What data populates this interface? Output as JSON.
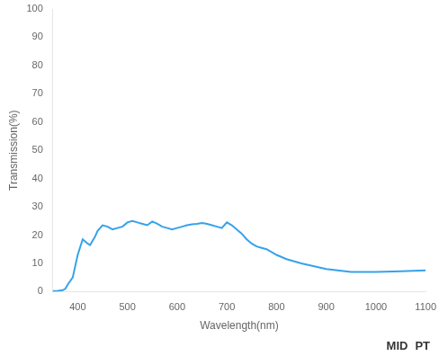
{
  "chart_data": {
    "type": "line",
    "x": [
      350,
      360,
      370,
      375,
      380,
      390,
      400,
      410,
      420,
      425,
      430,
      435,
      440,
      450,
      460,
      470,
      480,
      490,
      500,
      510,
      520,
      530,
      540,
      550,
      560,
      570,
      580,
      590,
      600,
      610,
      620,
      630,
      640,
      650,
      660,
      670,
      680,
      690,
      700,
      710,
      720,
      730,
      740,
      750,
      760,
      770,
      780,
      800,
      820,
      850,
      900,
      950,
      1000,
      1050,
      1100
    ],
    "values": [
      0.2,
      0.3,
      0.5,
      1.0,
      2.5,
      5.0,
      13.0,
      18.5,
      17.0,
      16.5,
      18.0,
      19.5,
      21.5,
      23.5,
      23.0,
      22.0,
      22.5,
      23.0,
      24.5,
      25.0,
      24.5,
      24.0,
      23.5,
      24.8,
      24.0,
      23.0,
      22.5,
      22.0,
      22.5,
      23.0,
      23.5,
      23.8,
      24.0,
      24.3,
      24.0,
      23.5,
      23.0,
      22.5,
      24.5,
      23.5,
      22.0,
      20.5,
      18.5,
      17.0,
      16.0,
      15.5,
      15.0,
      13.0,
      11.5,
      10.0,
      8.0,
      7.0,
      7.0,
      7.2,
      7.5
    ],
    "xlabel": "Wavelength(nm)",
    "ylabel": "Transmission(%)",
    "xlim": [
      350,
      1100
    ],
    "ylim": [
      0,
      100
    ],
    "xticks": [
      400,
      500,
      600,
      700,
      800,
      900,
      1000,
      1100
    ],
    "yticks": [
      0,
      10,
      20,
      30,
      40,
      50,
      60,
      70,
      80,
      90,
      100
    ],
    "grid": false,
    "marker": "none",
    "annotations": [
      "MID",
      "PT"
    ]
  }
}
